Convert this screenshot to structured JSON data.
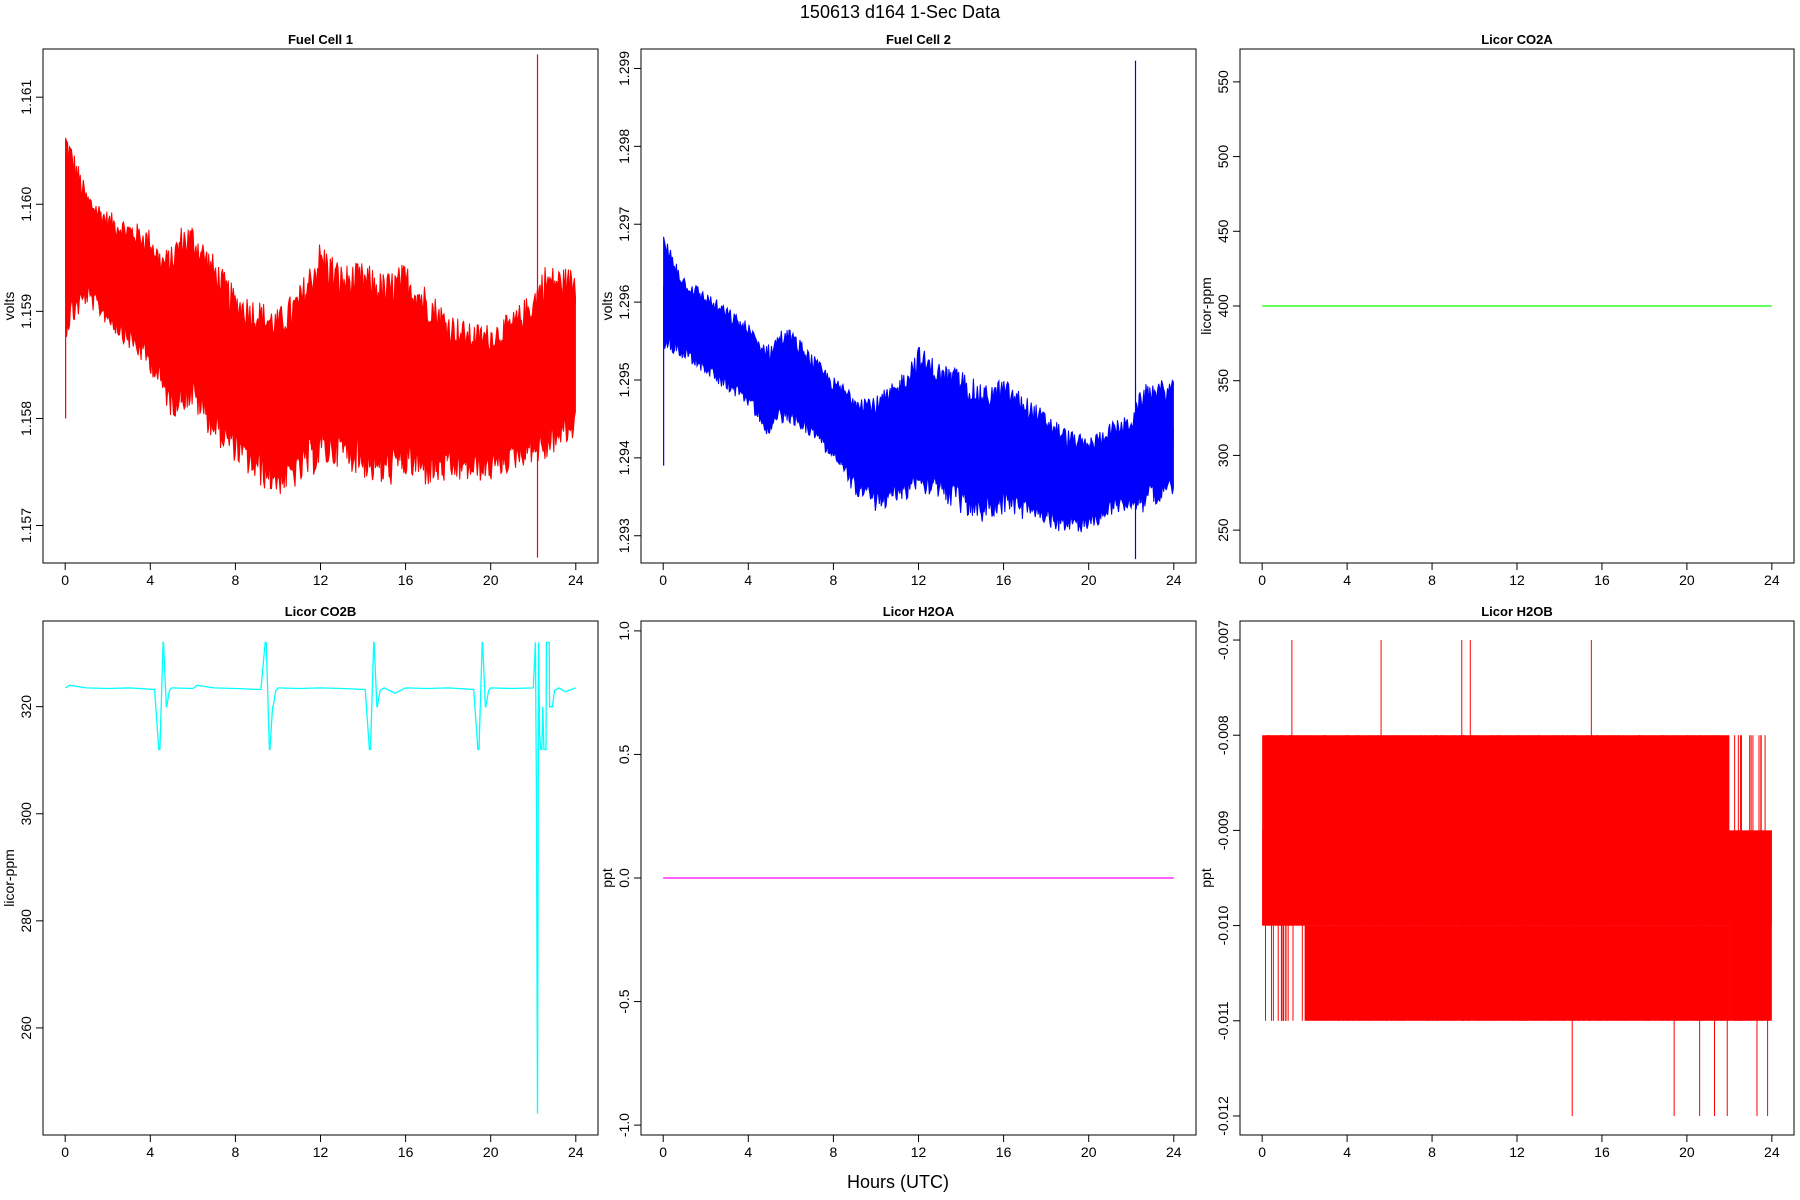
{
  "figure": {
    "title": "150613   d164   1-Sec Data",
    "xlabel": "Hours (UTC)"
  },
  "chart_data": [
    {
      "type": "line",
      "title": "Fuel Cell 1",
      "xlabel": "",
      "ylabel": "volts",
      "color": "#ff0000",
      "xlim": [
        0,
        24
      ],
      "ylim": [
        1.15665,
        1.16145
      ],
      "xticks": [
        0,
        4,
        8,
        12,
        16,
        20,
        24
      ],
      "yticks": [
        1.157,
        1.158,
        1.159,
        1.16,
        1.161
      ],
      "ytick_labels": [
        "1.157",
        "1.158",
        "1.159",
        "1.160",
        "1.161"
      ],
      "x": [
        0,
        1,
        2,
        3,
        4,
        4.5,
        5,
        5.5,
        6,
        7,
        8,
        9,
        10,
        11,
        12,
        13,
        14,
        15,
        16,
        17,
        18,
        19,
        20,
        21,
        22,
        22.5,
        23,
        24
      ],
      "band_low": [
        1.159,
        1.1592,
        1.159,
        1.1588,
        1.1586,
        1.1584,
        1.1582,
        1.1583,
        1.1583,
        1.158,
        1.1578,
        1.1576,
        1.1575,
        1.1576,
        1.1578,
        1.1578,
        1.1577,
        1.1576,
        1.1577,
        1.1576,
        1.1576,
        1.1576,
        1.1576,
        1.1577,
        1.1578,
        1.1578,
        1.1579,
        1.158
      ],
      "band_high": [
        1.1605,
        1.16,
        1.1598,
        1.1597,
        1.1596,
        1.1594,
        1.1594,
        1.1596,
        1.1596,
        1.1593,
        1.159,
        1.1589,
        1.1588,
        1.159,
        1.1594,
        1.1592,
        1.1592,
        1.1591,
        1.1592,
        1.159,
        1.1588,
        1.1587,
        1.1587,
        1.1588,
        1.159,
        1.1592,
        1.1592,
        1.1592
      ],
      "spikes": [
        {
          "x": 0.02,
          "low": 1.158,
          "high": 1.1606
        },
        {
          "x": 22.2,
          "low": 1.1567,
          "high": 1.1614
        }
      ]
    },
    {
      "type": "line",
      "title": "Fuel Cell 2",
      "xlabel": "",
      "ylabel": "volts",
      "color": "#0000ff",
      "xlim": [
        0,
        24
      ],
      "ylim": [
        1.29265,
        1.29925
      ],
      "xticks": [
        0,
        4,
        8,
        12,
        16,
        20,
        24
      ],
      "yticks": [
        1.293,
        1.294,
        1.295,
        1.296,
        1.297,
        1.298,
        1.299
      ],
      "ytick_labels": [
        "1.293",
        "1.294",
        "1.295",
        "1.296",
        "1.297",
        "1.298",
        "1.299"
      ],
      "x": [
        0,
        1,
        2,
        3,
        4,
        4.5,
        5,
        5.5,
        6,
        7,
        8,
        9,
        10,
        11,
        12,
        13,
        14,
        15,
        16,
        17,
        18,
        19,
        20,
        21,
        22,
        22.5,
        23,
        24
      ],
      "band_low": [
        1.2956,
        1.2954,
        1.2952,
        1.295,
        1.2948,
        1.2946,
        1.2944,
        1.2946,
        1.2946,
        1.2944,
        1.2941,
        1.2937,
        1.2935,
        1.2936,
        1.2938,
        1.2937,
        1.2935,
        1.2934,
        1.2935,
        1.2934,
        1.2933,
        1.2932,
        1.2932,
        1.2934,
        1.2935,
        1.2935,
        1.2936,
        1.2937
      ],
      "band_high": [
        1.2967,
        1.2962,
        1.296,
        1.2958,
        1.2956,
        1.2954,
        1.2953,
        1.2955,
        1.2955,
        1.2952,
        1.2949,
        1.2947,
        1.2946,
        1.2948,
        1.2952,
        1.295,
        1.2949,
        1.2947,
        1.2948,
        1.2946,
        1.2944,
        1.2942,
        1.2941,
        1.2943,
        1.2944,
        1.2947,
        1.2948,
        1.2948
      ],
      "spikes": [
        {
          "x": 0.02,
          "low": 1.2939,
          "high": 1.2962
        },
        {
          "x": 22.2,
          "low": 1.2927,
          "high": 1.2991
        }
      ]
    },
    {
      "type": "line",
      "title": "Licor CO2A",
      "xlabel": "",
      "ylabel": "licor-ppm",
      "color": "#00ff00",
      "xlim": [
        0,
        24
      ],
      "ylim": [
        228,
        572
      ],
      "xticks": [
        0,
        4,
        8,
        12,
        16,
        20,
        24
      ],
      "yticks": [
        250,
        300,
        350,
        400,
        450,
        500,
        550
      ],
      "ytick_labels": [
        "250",
        "300",
        "350",
        "400",
        "450",
        "500",
        "550"
      ],
      "x": [
        0,
        24
      ],
      "y": [
        400,
        400
      ]
    },
    {
      "type": "line",
      "title": "Licor CO2B",
      "xlabel": "",
      "ylabel": "licor-ppm",
      "color": "#00ffff",
      "xlim": [
        0,
        24
      ],
      "ylim": [
        240,
        336
      ],
      "xticks": [
        0,
        4,
        8,
        12,
        16,
        20,
        24
      ],
      "yticks": [
        260,
        280,
        300,
        320
      ],
      "ytick_labels": [
        "260",
        "280",
        "300",
        "320"
      ],
      "x": [
        0,
        0.2,
        1,
        2,
        3,
        4.2,
        4.4,
        4.45,
        4.6,
        4.62,
        4.75,
        4.77,
        4.9,
        4.95,
        5,
        6,
        6.2,
        7,
        8,
        9.2,
        9.4,
        9.45,
        9.6,
        9.62,
        9.75,
        9.77,
        9.9,
        9.95,
        10,
        11,
        12,
        13,
        14.1,
        14.3,
        14.35,
        14.5,
        14.52,
        14.65,
        14.67,
        14.8,
        14.85,
        15,
        15.5,
        16,
        17,
        18,
        19.2,
        19.4,
        19.45,
        19.6,
        19.62,
        19.75,
        19.77,
        19.9,
        19.95,
        20,
        21,
        22,
        22.1,
        22.15,
        22.2,
        22.25,
        22.3,
        22.35,
        22.4,
        22.45,
        22.5,
        22.6,
        22.62,
        22.75,
        22.77,
        22.9,
        23,
        23.2,
        23.5,
        24
      ],
      "y": [
        323.5,
        324,
        323.5,
        323.4,
        323.5,
        323.2,
        312,
        312,
        332,
        332,
        320,
        320,
        323,
        323.2,
        323.5,
        323.4,
        324,
        323.5,
        323.4,
        323.2,
        332,
        332,
        312,
        312,
        320,
        320,
        323,
        323.2,
        323.5,
        323.4,
        323.5,
        323.4,
        323.2,
        312,
        312,
        332,
        332,
        320,
        320,
        323,
        323.2,
        323.5,
        322.5,
        323.5,
        323.4,
        323.5,
        323.2,
        312,
        312,
        332,
        332,
        320,
        320,
        323,
        323.2,
        323.5,
        323.4,
        323.5,
        332,
        305,
        244,
        332,
        315,
        312,
        312,
        320,
        312,
        312,
        332,
        332,
        320,
        320,
        323,
        323.5,
        322.8,
        323.5
      ]
    },
    {
      "type": "line",
      "title": "Licor H2OA",
      "xlabel": "",
      "ylabel": "ppt",
      "color": "#ff00ff",
      "xlim": [
        0,
        24
      ],
      "ylim": [
        -1.04,
        1.04
      ],
      "xticks": [
        0,
        4,
        8,
        12,
        16,
        20,
        24
      ],
      "yticks": [
        -1.0,
        -0.5,
        0.0,
        0.5,
        1.0
      ],
      "ytick_labels": [
        "-1.0",
        "-0.5",
        "0.0",
        "0.5",
        "1.0"
      ],
      "x": [
        0,
        24
      ],
      "y": [
        0,
        0
      ]
    },
    {
      "type": "line",
      "title": "Licor H2OB",
      "xlabel": "",
      "ylabel": "ppt",
      "color": "#ff0000",
      "xlim": [
        0,
        24
      ],
      "ylim": [
        -0.0122,
        -0.0068
      ],
      "xticks": [
        0,
        4,
        8,
        12,
        16,
        20,
        24
      ],
      "yticks": [
        -0.012,
        -0.011,
        -0.01,
        -0.009,
        -0.008,
        -0.007
      ],
      "ytick_labels": [
        "-0.012",
        "-0.011",
        "-0.010",
        "-0.009",
        "-0.008",
        "-0.007"
      ],
      "fill_ranges": [
        {
          "x0": 0,
          "x1": 22.0,
          "low": -0.01,
          "high": -0.008
        },
        {
          "x0": 0,
          "x1": 24,
          "low": -0.01,
          "high": -0.009
        },
        {
          "x0": 22.0,
          "x1": 24,
          "low": -0.011,
          "high": -0.009
        },
        {
          "x0": 2.0,
          "x1": 22.0,
          "low": -0.011,
          "high": -0.01
        }
      ],
      "step_lines": [
        {
          "x": 1.4,
          "low": -0.01,
          "high": -0.007
        },
        {
          "x": 5.6,
          "low": -0.01,
          "high": -0.007
        },
        {
          "x": 9.4,
          "low": -0.01,
          "high": -0.007
        },
        {
          "x": 9.8,
          "low": -0.01,
          "high": -0.007
        },
        {
          "x": 15.5,
          "low": -0.01,
          "high": -0.007
        },
        {
          "x": 14.6,
          "low": -0.012,
          "high": -0.01
        },
        {
          "x": 19.4,
          "low": -0.012,
          "high": -0.01
        },
        {
          "x": 20.6,
          "low": -0.012,
          "high": -0.01
        },
        {
          "x": 21.3,
          "low": -0.012,
          "high": -0.01
        },
        {
          "x": 23.3,
          "low": -0.012,
          "high": -0.01
        },
        {
          "x": 23.8,
          "low": -0.012,
          "high": -0.01
        },
        {
          "x": 21.9,
          "low": -0.012,
          "high": -0.01
        },
        {
          "x": 23.5,
          "low": -0.01,
          "high": -0.008
        }
      ]
    }
  ]
}
